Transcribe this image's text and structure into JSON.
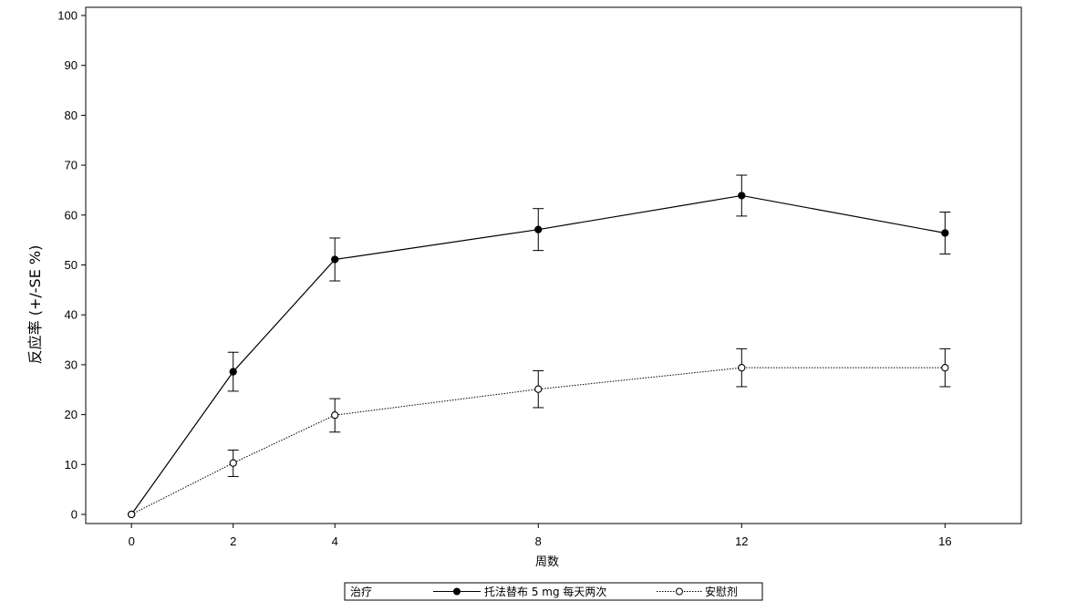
{
  "chart_data": {
    "type": "line",
    "xlabel": "周数",
    "ylabel": "反应率 (+/-SE %)",
    "x": [
      0,
      2,
      4,
      8,
      12,
      16
    ],
    "xticks": [
      "0",
      "2",
      "4",
      "8",
      "12",
      "16"
    ],
    "xlim": [
      -0.9,
      17.5
    ],
    "ylim": [
      0,
      100
    ],
    "yticks": [
      "0",
      "10",
      "20",
      "30",
      "40",
      "50",
      "60",
      "70",
      "80",
      "90",
      "100"
    ],
    "grid": false,
    "legend_position": "bottom",
    "legend_title": "治疗",
    "series": [
      {
        "name": "托法替布 5 mg 每天两次",
        "values": [
          0,
          28.6,
          51.1,
          57.1,
          63.9,
          56.4
        ],
        "error_low": [
          0,
          24.7,
          46.8,
          52.9,
          59.8,
          52.2
        ],
        "error_high": [
          0,
          32.5,
          55.4,
          61.3,
          68.0,
          60.6
        ],
        "marker": "filled-circle",
        "line_style": "solid",
        "color": "#000000"
      },
      {
        "name": "安慰剂",
        "values": [
          0,
          10.3,
          19.9,
          25.1,
          29.4,
          29.4
        ],
        "error_low": [
          0,
          7.6,
          16.5,
          21.4,
          25.6,
          25.6
        ],
        "error_high": [
          0,
          12.9,
          23.2,
          28.8,
          33.2,
          33.2
        ],
        "marker": "open-circle",
        "line_style": "dotted",
        "color": "#000000"
      }
    ]
  }
}
